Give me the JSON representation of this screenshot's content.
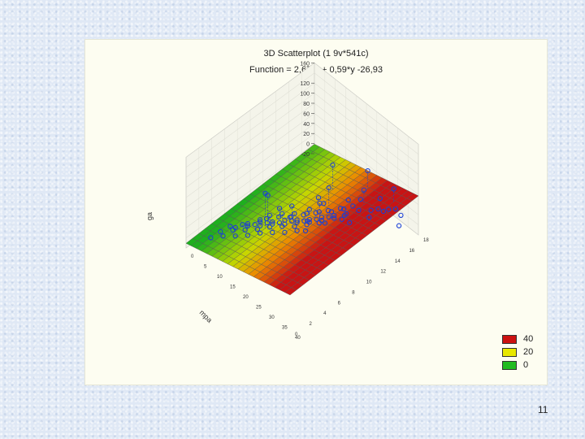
{
  "slide": {
    "page_number": "11"
  },
  "chart_data": {
    "type": "scatter",
    "title": "3D Scatterplot (1 9v*541c)",
    "subtitle": "Function = 2,67*x + 0,59*y -26,93",
    "zlabel": "ga",
    "ylabel": "mpa",
    "xlabel": "",
    "z_ticks": [
      "160",
      "120",
      "100",
      "80",
      "60",
      "40",
      "20",
      "0",
      "-20"
    ],
    "zlim": [
      -20,
      160
    ],
    "xlim": [
      0,
      40
    ],
    "ylim": [
      0,
      18
    ],
    "surface": {
      "function": "2.67*x + 0.59*y - 26.93"
    },
    "legend": {
      "placement": "bottom-right",
      "items": [
        {
          "label": "40",
          "color": "#cc1111"
        },
        {
          "label": "20",
          "color": "#e8e800"
        },
        {
          "label": "0",
          "color": "#22bb22"
        }
      ]
    },
    "point_color": "#1a3fd6",
    "points_note_hidden": false,
    "points": [
      [
        14,
        6,
        150
      ],
      [
        15,
        6,
        150
      ],
      [
        18,
        14,
        130
      ],
      [
        22,
        12,
        115
      ],
      [
        24,
        10,
        112
      ],
      [
        26,
        16,
        130
      ],
      [
        30,
        14,
        128
      ],
      [
        36,
        16,
        138
      ],
      [
        14,
        8,
        58
      ],
      [
        16,
        9,
        62
      ],
      [
        18,
        8,
        55
      ],
      [
        20,
        10,
        60
      ],
      [
        22,
        9,
        52
      ],
      [
        24,
        8,
        50
      ],
      [
        26,
        10,
        55
      ],
      [
        28,
        12,
        60
      ],
      [
        30,
        12,
        48
      ],
      [
        12,
        6,
        40
      ],
      [
        13,
        7,
        44
      ],
      [
        15,
        8,
        46
      ],
      [
        17,
        9,
        42
      ],
      [
        19,
        10,
        38
      ],
      [
        21,
        11,
        40
      ],
      [
        23,
        12,
        36
      ],
      [
        25,
        13,
        42
      ],
      [
        27,
        12,
        38
      ],
      [
        10,
        5,
        30
      ],
      [
        12,
        6,
        32
      ],
      [
        14,
        7,
        28
      ],
      [
        16,
        8,
        30
      ],
      [
        18,
        9,
        26
      ],
      [
        20,
        10,
        24
      ],
      [
        22,
        11,
        28
      ],
      [
        24,
        12,
        30
      ],
      [
        26,
        13,
        32
      ],
      [
        8,
        4,
        20
      ],
      [
        10,
        5,
        22
      ],
      [
        12,
        6,
        18
      ],
      [
        14,
        7,
        20
      ],
      [
        16,
        8,
        16
      ],
      [
        18,
        9,
        18
      ],
      [
        20,
        10,
        14
      ],
      [
        22,
        11,
        16
      ],
      [
        24,
        12,
        20
      ],
      [
        6,
        4,
        10
      ],
      [
        8,
        5,
        12
      ],
      [
        10,
        6,
        8
      ],
      [
        12,
        7,
        10
      ],
      [
        14,
        8,
        6
      ],
      [
        16,
        9,
        8
      ],
      [
        18,
        10,
        4
      ],
      [
        20,
        11,
        6
      ],
      [
        22,
        12,
        10
      ],
      [
        5,
        3,
        2
      ],
      [
        7,
        4,
        4
      ],
      [
        9,
        5,
        0
      ],
      [
        11,
        6,
        -2
      ],
      [
        13,
        7,
        2
      ],
      [
        15,
        8,
        0
      ],
      [
        17,
        9,
        -4
      ],
      [
        19,
        10,
        -2
      ],
      [
        21,
        11,
        0
      ],
      [
        4,
        2,
        -8
      ],
      [
        6,
        3,
        -6
      ],
      [
        8,
        4,
        -10
      ],
      [
        10,
        5,
        -12
      ],
      [
        12,
        6,
        -8
      ],
      [
        14,
        7,
        -10
      ],
      [
        16,
        8,
        -14
      ],
      [
        18,
        9,
        -12
      ],
      [
        28,
        14,
        40
      ],
      [
        30,
        15,
        36
      ],
      [
        32,
        14,
        44
      ],
      [
        34,
        16,
        50
      ],
      [
        26,
        15,
        46
      ],
      [
        24,
        14,
        48
      ],
      [
        20,
        12,
        44
      ],
      [
        18,
        12,
        50
      ],
      [
        9,
        8,
        -16
      ],
      [
        11,
        9,
        -14
      ],
      [
        13,
        10,
        -18
      ],
      [
        15,
        11,
        -15
      ],
      [
        17,
        12,
        -12
      ],
      [
        19,
        13,
        -8
      ],
      [
        21,
        14,
        -4
      ],
      [
        23,
        15,
        0
      ],
      [
        32,
        16,
        28
      ],
      [
        34,
        17,
        32
      ],
      [
        36,
        17,
        24
      ],
      [
        38,
        16,
        20
      ],
      [
        30,
        16,
        22
      ],
      [
        28,
        17,
        26
      ]
    ]
  }
}
